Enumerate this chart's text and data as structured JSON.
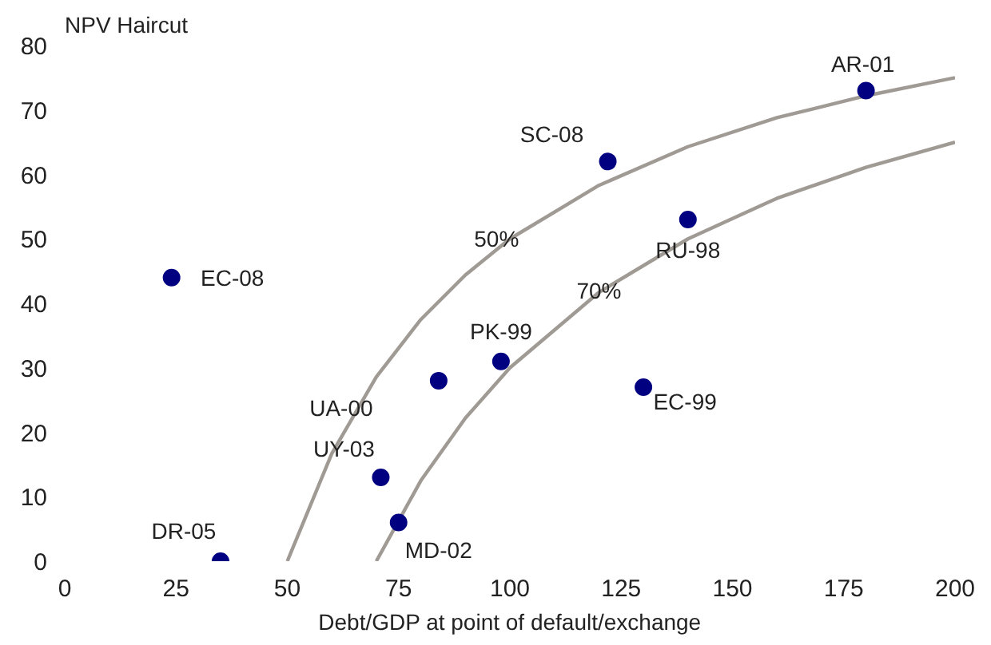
{
  "chart_data": {
    "type": "scatter",
    "title": "NPV Haircut",
    "xlabel": "Debt/GDP at point of default/exchange",
    "xlim": [
      0,
      200
    ],
    "ylim": [
      0,
      80
    ],
    "xticks": [
      0,
      25,
      50,
      75,
      100,
      125,
      150,
      175,
      200
    ],
    "yticks": [
      0,
      10,
      20,
      30,
      40,
      50,
      60,
      70,
      80
    ],
    "marker": "circle",
    "series": [
      {
        "type": "line",
        "marker": "none",
        "color": "#a09a94",
        "x": [
          50,
          60,
          70,
          80,
          90,
          100,
          120,
          140,
          160,
          180,
          200
        ],
        "values": [
          0,
          16.7,
          28.6,
          37.5,
          44.4,
          50,
          58.3,
          64.3,
          68.8,
          72.2,
          75
        ]
      },
      {
        "type": "line",
        "marker": "none",
        "color": "#a09a94",
        "x": [
          70,
          80,
          90,
          100,
          120,
          140,
          160,
          180,
          200
        ],
        "values": [
          0,
          12.5,
          22.2,
          30,
          41.7,
          50,
          56.3,
          61.1,
          65
        ]
      },
      {
        "color": "#000080",
        "x": [
          180,
          122,
          140,
          24,
          98,
          84,
          130,
          71,
          75,
          35
        ],
        "values": [
          73,
          62,
          53,
          44,
          31,
          28,
          27,
          13,
          6,
          0
        ]
      }
    ],
    "annotations": [
      {
        "text": "50%",
        "x": 97,
        "y": 50
      },
      {
        "text": "70%",
        "x": 120,
        "y": 42
      },
      {
        "text": "AR-01",
        "x": 180,
        "y": 73
      },
      {
        "text": "SC-08",
        "x": 122,
        "y": 62
      },
      {
        "text": "RU-98",
        "x": 140,
        "y": 53
      },
      {
        "text": "EC-08",
        "x": 24,
        "y": 44
      },
      {
        "text": "PK-99",
        "x": 98,
        "y": 31
      },
      {
        "text": "UA-00",
        "x": 84,
        "y": 28
      },
      {
        "text": "UY-03",
        "x": 71,
        "y": 13
      },
      {
        "text": "EC-99",
        "x": 130,
        "y": 27
      },
      {
        "text": "MD-02",
        "x": 75,
        "y": 6
      },
      {
        "text": "DR-05",
        "x": 35,
        "y": 0
      }
    ]
  }
}
